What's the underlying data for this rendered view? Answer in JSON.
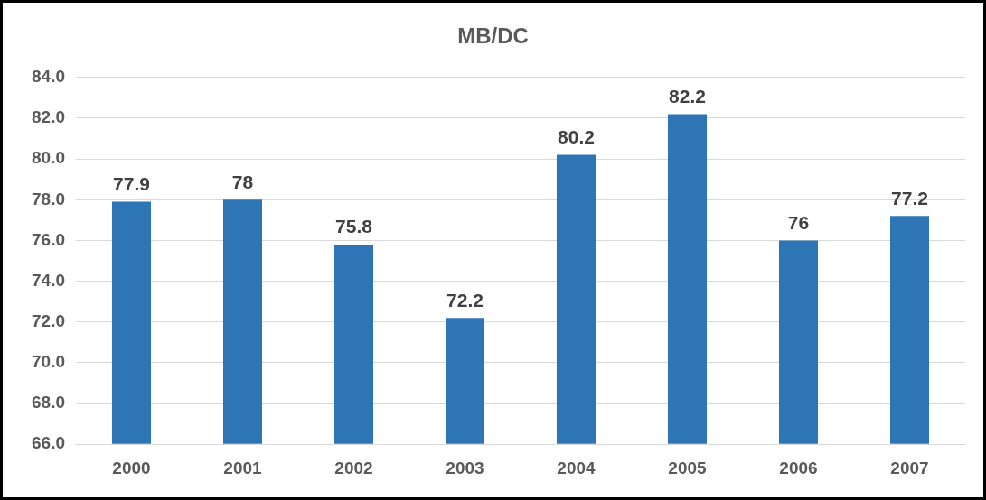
{
  "chart_data": {
    "type": "bar",
    "title": "MB/DC",
    "categories": [
      "2000",
      "2001",
      "2002",
      "2003",
      "2004",
      "2005",
      "2006",
      "2007"
    ],
    "values": [
      77.9,
      78,
      75.8,
      72.2,
      80.2,
      82.2,
      76,
      77.2
    ],
    "color": "#2e75b6",
    "ylim": [
      66,
      84
    ],
    "yticks": [
      {
        "value": 66,
        "label": "66.0"
      },
      {
        "value": 68,
        "label": "68.0"
      },
      {
        "value": 70,
        "label": "70.0"
      },
      {
        "value": 72,
        "label": "72.0"
      },
      {
        "value": 74,
        "label": "74.0"
      },
      {
        "value": 76,
        "label": "76.0"
      },
      {
        "value": 78,
        "label": "78.0"
      },
      {
        "value": 80,
        "label": "80.0"
      },
      {
        "value": 82,
        "label": "82.0"
      },
      {
        "value": 84,
        "label": "84.0"
      }
    ],
    "grid": "y",
    "data_labels": true,
    "legend": false
  }
}
